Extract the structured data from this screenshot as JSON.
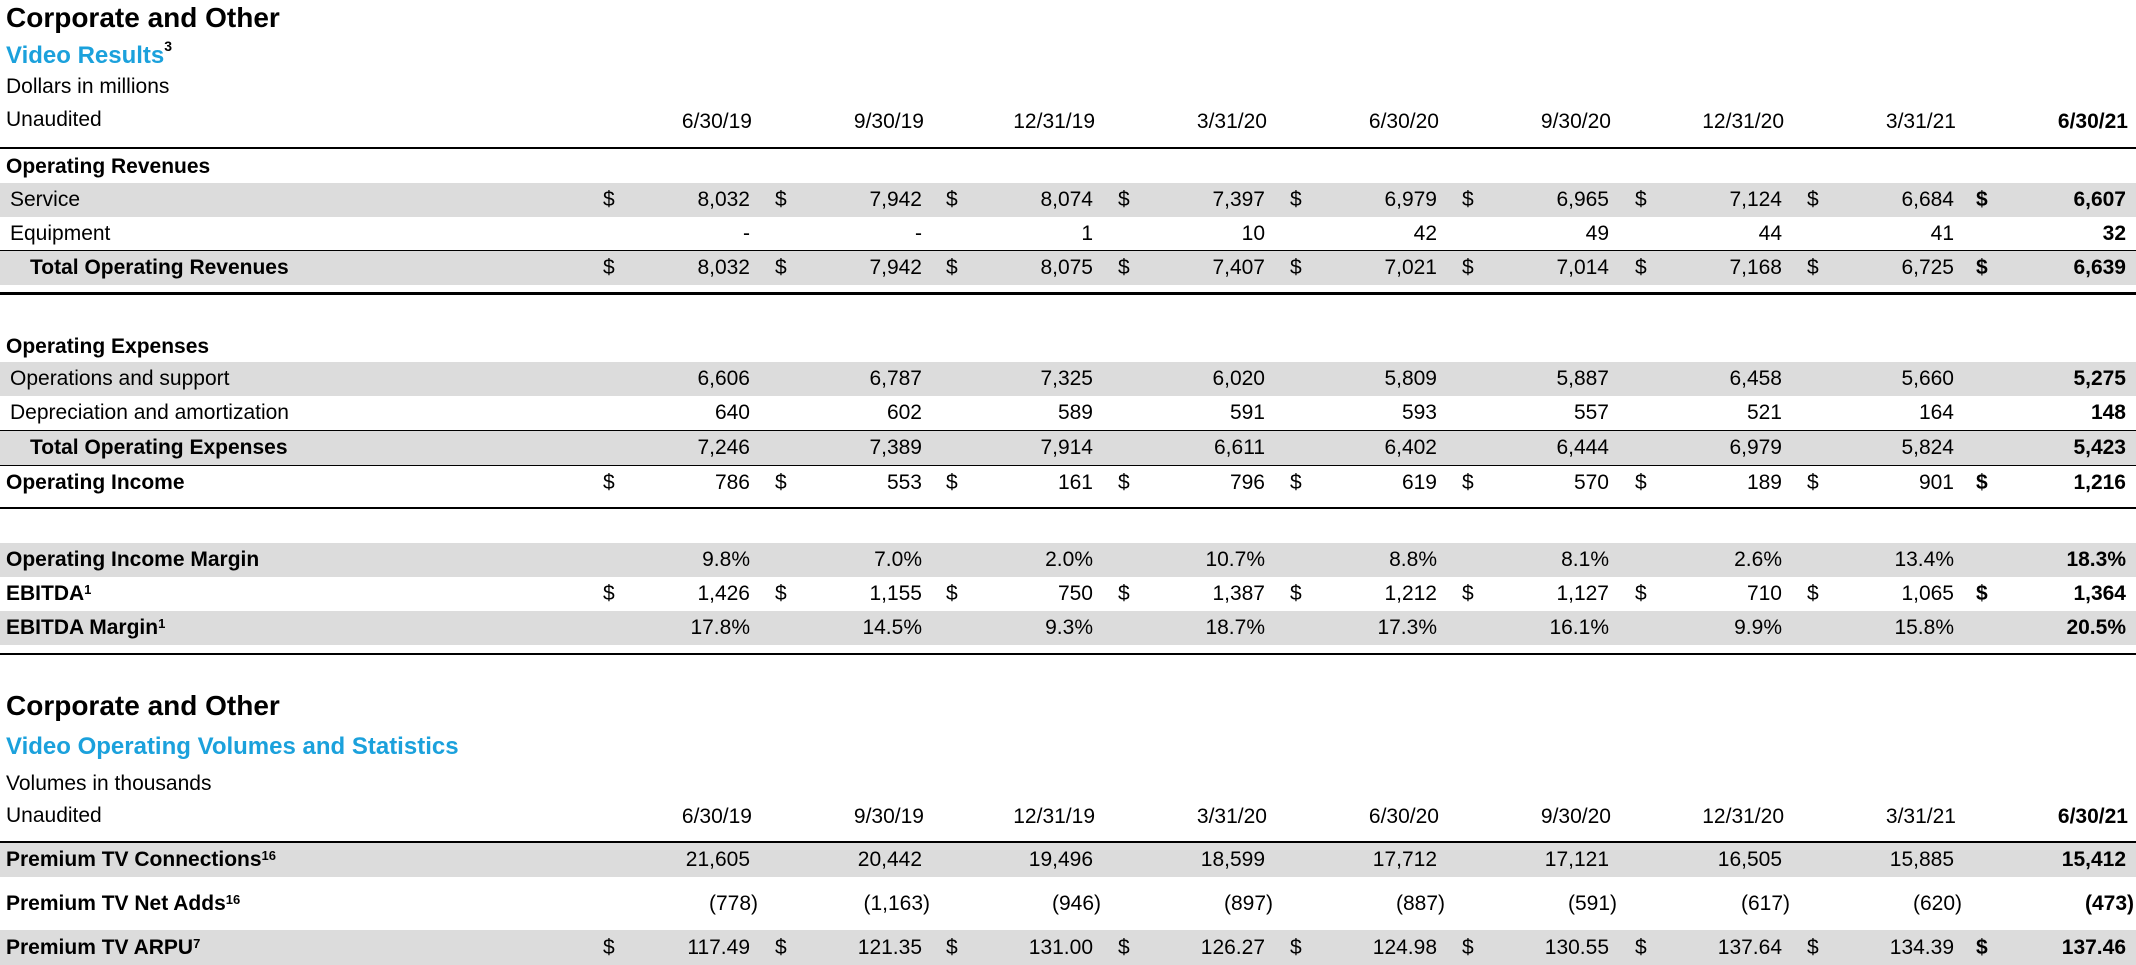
{
  "section1": {
    "title": "Corporate and Other",
    "subtitle": "Video Results",
    "subtitle_sup": "3",
    "units": "Dollars in millions",
    "audit": "Unaudited",
    "periods": [
      "6/30/19",
      "9/30/19",
      "12/31/19",
      "3/31/20",
      "6/30/20",
      "9/30/20",
      "12/31/20",
      "3/31/21",
      "6/30/21"
    ],
    "op_rev_heading": "Operating Revenues",
    "service": {
      "label": "Service",
      "dollar": "$",
      "values": [
        "8,032",
        "7,942",
        "8,074",
        "7,397",
        "6,979",
        "6,965",
        "7,124",
        "6,684",
        "6,607"
      ]
    },
    "equipment": {
      "label": "Equipment",
      "values": [
        "-",
        "-",
        "1",
        "10",
        "42",
        "49",
        "44",
        "41",
        "32"
      ]
    },
    "total_rev": {
      "label": "Total Operating Revenues",
      "dollar": "$",
      "values": [
        "8,032",
        "7,942",
        "8,075",
        "7,407",
        "7,021",
        "7,014",
        "7,168",
        "6,725",
        "6,639"
      ]
    },
    "op_exp_heading": "Operating Expenses",
    "ops_support": {
      "label": "Operations and support",
      "values": [
        "6,606",
        "6,787",
        "7,325",
        "6,020",
        "5,809",
        "5,887",
        "6,458",
        "5,660",
        "5,275"
      ]
    },
    "dep_amort": {
      "label": "Depreciation and amortization",
      "values": [
        "640",
        "602",
        "589",
        "591",
        "593",
        "557",
        "521",
        "164",
        "148"
      ]
    },
    "total_exp": {
      "label": "Total Operating Expenses",
      "values": [
        "7,246",
        "7,389",
        "7,914",
        "6,611",
        "6,402",
        "6,444",
        "6,979",
        "5,824",
        "5,423"
      ]
    },
    "op_income": {
      "label": "Operating Income",
      "dollar": "$",
      "values": [
        "786",
        "553",
        "161",
        "796",
        "619",
        "570",
        "189",
        "901",
        "1,216"
      ]
    },
    "op_margin": {
      "label": "Operating Income Margin",
      "values": [
        "9.8%",
        "7.0%",
        "2.0%",
        "10.7%",
        "8.8%",
        "8.1%",
        "2.6%",
        "13.4%",
        "18.3%"
      ]
    },
    "ebitda": {
      "label": "EBITDA",
      "sup": "1",
      "dollar": "$",
      "values": [
        "1,426",
        "1,155",
        "750",
        "1,387",
        "1,212",
        "1,127",
        "710",
        "1,065",
        "1,364"
      ]
    },
    "ebitda_margin": {
      "label": "EBITDA Margin",
      "sup": "1",
      "values": [
        "17.8%",
        "14.5%",
        "9.3%",
        "18.7%",
        "17.3%",
        "16.1%",
        "9.9%",
        "15.8%",
        "20.5%"
      ]
    }
  },
  "section2": {
    "title": "Corporate and Other",
    "subtitle": "Video Operating Volumes and Statistics",
    "units": "Volumes in thousands",
    "audit": "Unaudited",
    "periods": [
      "6/30/19",
      "9/30/19",
      "12/31/19",
      "3/31/20",
      "6/30/20",
      "9/30/20",
      "12/31/20",
      "3/31/21",
      "6/30/21"
    ],
    "connections": {
      "label": "Premium TV Connections",
      "sup": "16",
      "values": [
        "21,605",
        "20,442",
        "19,496",
        "18,599",
        "17,712",
        "17,121",
        "16,505",
        "15,885",
        "15,412"
      ]
    },
    "net_adds": {
      "label": "Premium TV Net Adds",
      "sup": "16",
      "values": [
        "(778)",
        "(1,163)",
        "(946)",
        "(897)",
        "(887)",
        "(591)",
        "(617)",
        "(620)",
        "(473)"
      ]
    },
    "arpu": {
      "label": "Premium TV ARPU",
      "sup": "7",
      "dollar": "$",
      "values": [
        "117.49",
        "121.35",
        "131.00",
        "126.27",
        "124.98",
        "130.55",
        "137.64",
        "134.39",
        "137.46"
      ]
    }
  }
}
